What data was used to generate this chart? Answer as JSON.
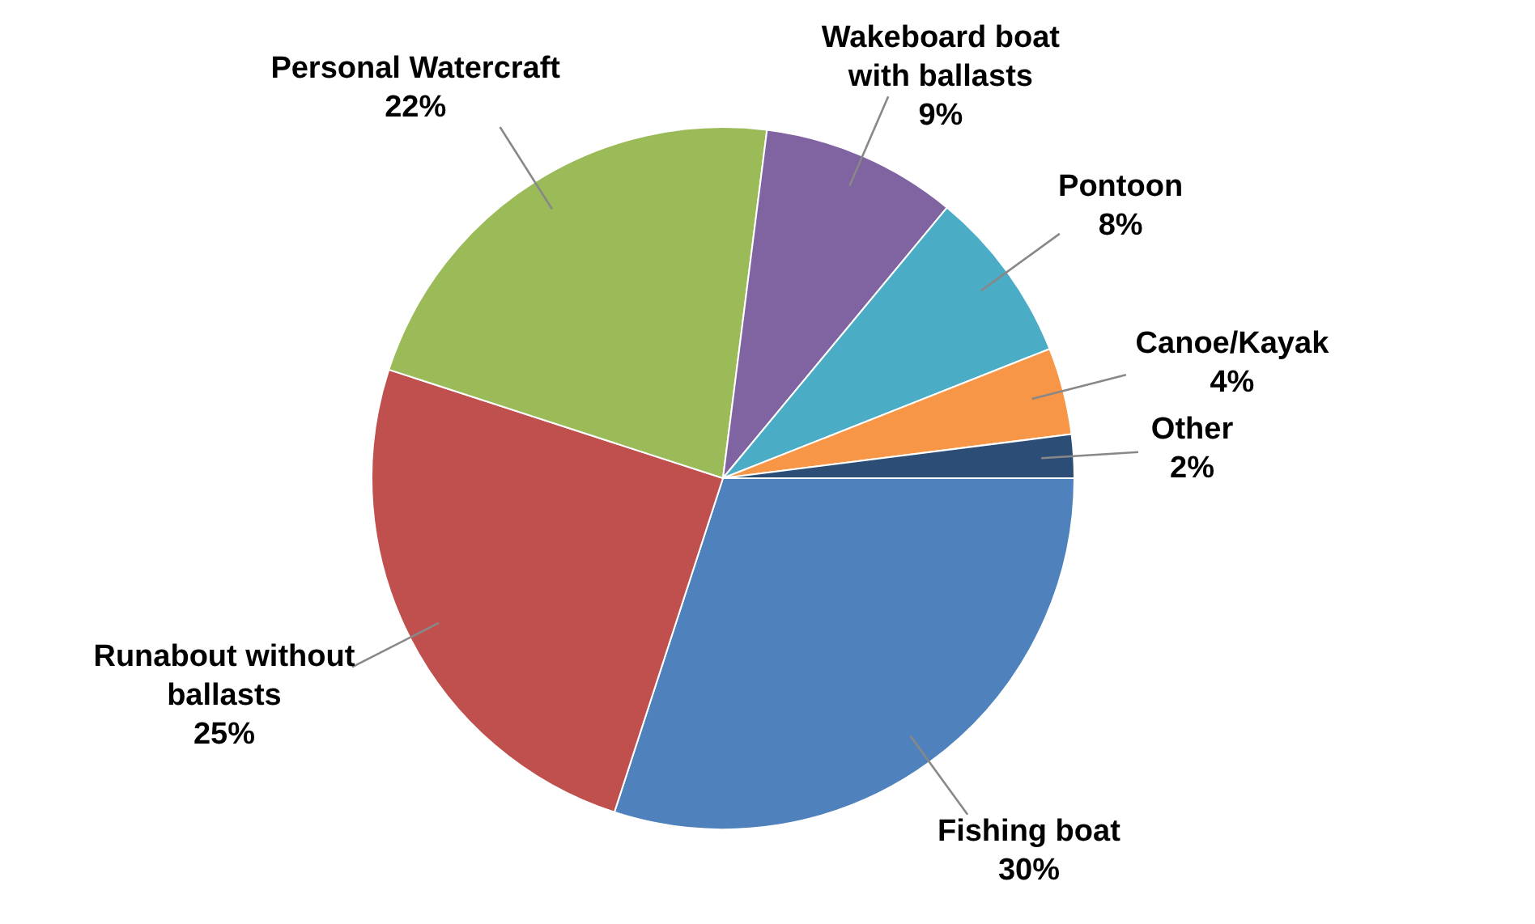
{
  "chart_data": {
    "type": "pie",
    "categories": [
      "Fishing boat",
      "Runabout without ballasts",
      "Personal Watercraft",
      "Wakeboard boat with ballasts",
      "Pontoon",
      "Canoe/Kayak",
      "Other"
    ],
    "values": [
      30,
      25,
      22,
      9,
      8,
      4,
      2
    ],
    "colors": [
      "#4f81bd",
      "#c0504d",
      "#9bbb59",
      "#8064a2",
      "#4bacc6",
      "#f79646",
      "#2c4d75"
    ],
    "value_labels": [
      "30%",
      "25%",
      "22%",
      "9%",
      "8%",
      "4%",
      "2%"
    ],
    "legend": false
  }
}
